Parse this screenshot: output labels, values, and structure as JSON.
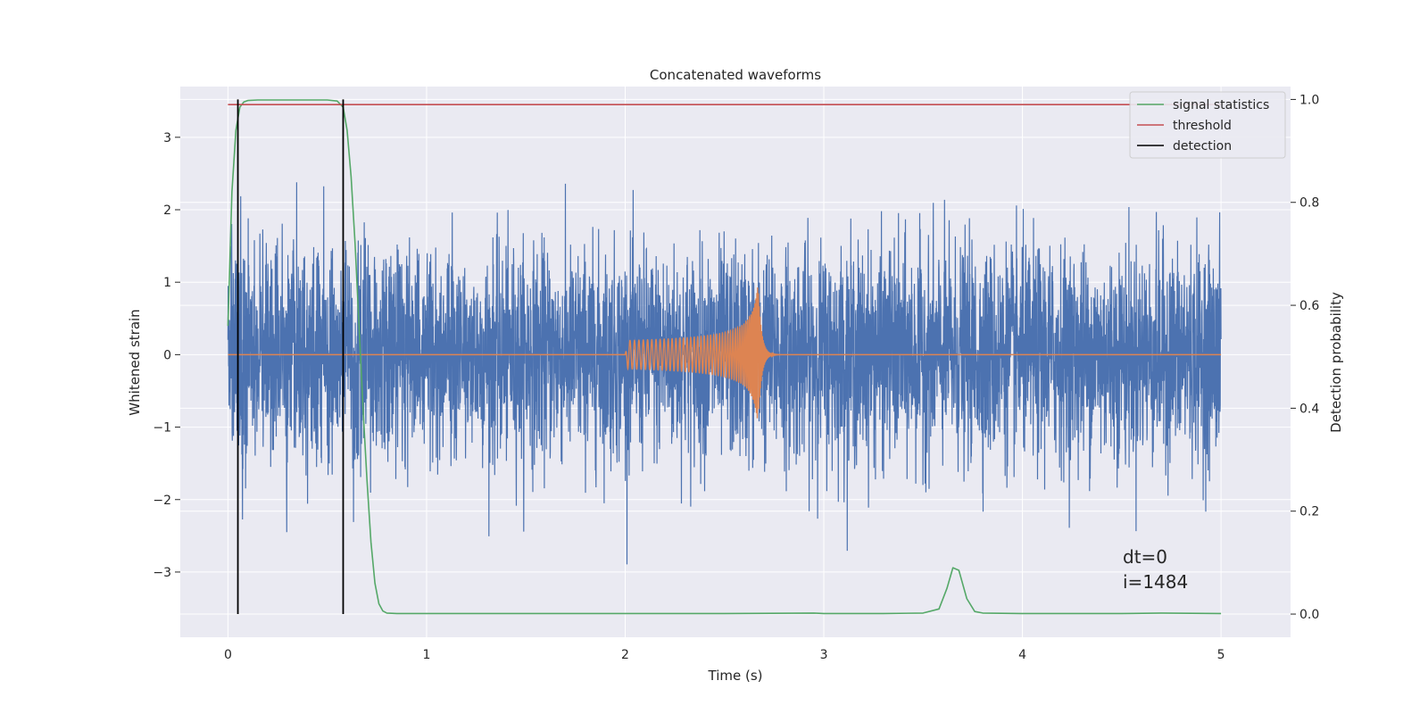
{
  "chart_data": {
    "type": "line",
    "title": "Concatenated waveforms",
    "xlabel": "Time (s)",
    "ylabel": "Whitened strain",
    "y2label": "Detection probability",
    "xlim": [
      -0.24,
      5.35
    ],
    "ylim": [
      -3.9,
      3.7
    ],
    "y2lim": [
      -0.045,
      1.025
    ],
    "xticks": [
      "0",
      "1",
      "2",
      "3",
      "4",
      "5"
    ],
    "xtick_values": [
      0,
      1,
      2,
      3,
      4,
      5
    ],
    "yticks": [
      "−3",
      "−2",
      "−1",
      "0",
      "1",
      "2",
      "3"
    ],
    "ytick_values": [
      -3,
      -2,
      -1,
      0,
      1,
      2,
      3
    ],
    "y2ticks": [
      "0.0",
      "0.2",
      "0.4",
      "0.6",
      "0.8",
      "1.0"
    ],
    "y2tick_values": [
      0,
      0.2,
      0.4,
      0.6,
      0.8,
      1.0
    ],
    "grid": true,
    "legend_position": "top-right",
    "colors": {
      "strain": "#4c72b0",
      "template": "#dd8452",
      "signal": "#55a868",
      "threshold": "#c44e52",
      "detection": "#000000",
      "background": "#eaeaf2",
      "grid": "#ffffff"
    },
    "series": [
      {
        "name": "signal statistics",
        "axis": "right",
        "x": [
          0,
          0.02,
          0.04,
          0.06,
          0.08,
          0.1,
          0.15,
          0.3,
          0.5,
          0.55,
          0.58,
          0.6,
          0.62,
          0.64,
          0.66,
          0.68,
          0.7,
          0.72,
          0.74,
          0.76,
          0.78,
          0.8,
          0.85,
          1.0,
          1.5,
          2.0,
          2.5,
          2.95,
          3.0,
          3.3,
          3.5,
          3.58,
          3.62,
          3.65,
          3.68,
          3.72,
          3.76,
          3.8,
          4.0,
          4.5,
          4.7,
          5.0
        ],
        "y": [
          0.56,
          0.82,
          0.94,
          0.985,
          0.995,
          0.998,
          0.999,
          0.999,
          0.999,
          0.997,
          0.985,
          0.94,
          0.85,
          0.72,
          0.56,
          0.4,
          0.26,
          0.14,
          0.06,
          0.02,
          0.006,
          0.002,
          0.001,
          0.001,
          0.001,
          0.001,
          0.001,
          0.002,
          0.001,
          0.001,
          0.002,
          0.01,
          0.05,
          0.09,
          0.085,
          0.03,
          0.005,
          0.002,
          0.001,
          0.001,
          0.002,
          0.001
        ]
      },
      {
        "name": "threshold",
        "axis": "right",
        "x": [
          0,
          5.0
        ],
        "y": [
          0.99,
          0.99
        ]
      },
      {
        "name": "detection",
        "axis": "right",
        "segments": [
          [
            0.05,
            0.05
          ],
          [
            0.58,
            0.58
          ]
        ],
        "y": [
          0.0,
          1.0
        ]
      }
    ],
    "annotations": {
      "dt": "dt=0",
      "i": "i=1484"
    }
  }
}
